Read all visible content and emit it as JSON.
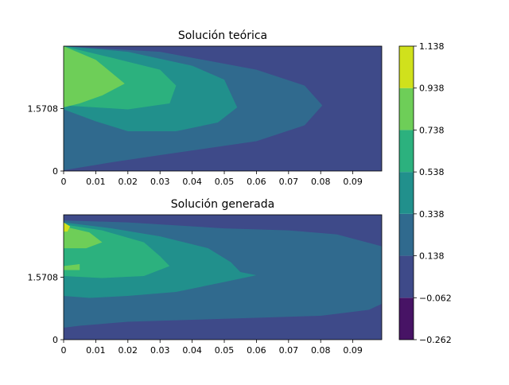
{
  "chart_data": {
    "type": "heatmap",
    "shared_colorbar": {
      "levels": [
        -0.262,
        -0.062,
        0.138,
        0.338,
        0.538,
        0.738,
        0.938,
        1.138
      ],
      "tick_labels": [
        "−0.262",
        "−0.062",
        "0.138",
        "0.338",
        "0.538",
        "0.738",
        "0.938",
        "1.138"
      ],
      "colors": [
        "#471365",
        "#3e4a89",
        "#306a8e",
        "#21908c",
        "#2cb17e",
        "#6ece58",
        "#d0e11c"
      ]
    },
    "panels": [
      {
        "title": "Solución teórica",
        "xlim": [
          0,
          0.099
        ],
        "ylim": [
          0,
          3.14159
        ],
        "x_ticks": [
          0,
          0.01,
          0.02,
          0.03,
          0.04,
          0.05,
          0.06,
          0.07,
          0.08,
          0.09
        ],
        "x_tick_labels": [
          "0",
          "0.01",
          "0.02",
          "0.03",
          "0.04",
          "0.05",
          "0.06",
          "0.07",
          "0.08",
          "0.09"
        ],
        "y_ticks": [
          0,
          1.5708
        ],
        "y_tick_labels": [
          "0",
          "1.5708"
        ],
        "band_boundaries": [
          {
            "level": 0.138,
            "points": [
              [
                0,
                3.14
              ],
              [
                0.03,
                3.0
              ],
              [
                0.06,
                2.55
              ],
              [
                0.075,
                2.15
              ],
              [
                0.0805,
                1.65
              ],
              [
                0.075,
                1.15
              ],
              [
                0.06,
                0.75
              ],
              [
                0.03,
                0.4
              ],
              [
                0.015,
                0.22
              ],
              [
                0,
                0.02
              ]
            ]
          },
          {
            "level": 0.338,
            "points": [
              [
                0,
                3.14
              ],
              [
                0.02,
                3.0
              ],
              [
                0.04,
                2.65
              ],
              [
                0.05,
                2.3
              ],
              [
                0.054,
                1.6
              ],
              [
                0.048,
                1.22
              ],
              [
                0.035,
                1.0
              ],
              [
                0.02,
                1.0
              ],
              [
                0.01,
                1.25
              ],
              [
                0,
                1.55
              ]
            ]
          },
          {
            "level": 0.538,
            "points": [
              [
                0,
                3.14
              ],
              [
                0.015,
                2.85
              ],
              [
                0.03,
                2.55
              ],
              [
                0.035,
                2.15
              ],
              [
                0.033,
                1.7
              ],
              [
                0.02,
                1.55
              ],
              [
                0.01,
                1.6
              ],
              [
                0,
                1.65
              ]
            ]
          },
          {
            "level": 0.738,
            "points": [
              [
                0,
                3.14
              ],
              [
                0.01,
                2.8
              ],
              [
                0.019,
                2.2
              ],
              [
                0.012,
                1.9
              ],
              [
                0.005,
                1.7
              ],
              [
                0,
                1.6
              ]
            ]
          }
        ]
      },
      {
        "title": "Solución generada",
        "xlim": [
          0,
          0.099
        ],
        "ylim": [
          0,
          3.14159
        ],
        "x_ticks": [
          0,
          0.01,
          0.02,
          0.03,
          0.04,
          0.05,
          0.06,
          0.07,
          0.08,
          0.09
        ],
        "x_tick_labels": [
          "0",
          "0.01",
          "0.02",
          "0.03",
          "0.04",
          "0.05",
          "0.06",
          "0.07",
          "0.08",
          "0.09"
        ],
        "y_ticks": [
          0,
          1.5708
        ],
        "y_tick_labels": [
          "0",
          "1.5708"
        ],
        "band_boundaries": [
          {
            "level": 0.138,
            "points": [
              [
                0,
                3.0
              ],
              [
                0.02,
                2.95
              ],
              [
                0.05,
                2.8
              ],
              [
                0.07,
                2.75
              ],
              [
                0.085,
                2.65
              ],
              [
                0.099,
                2.35
              ],
              [
                0.099,
                0.9
              ],
              [
                0.095,
                0.75
              ],
              [
                0.08,
                0.6
              ],
              [
                0.06,
                0.55
              ],
              [
                0.04,
                0.5
              ],
              [
                0.02,
                0.45
              ],
              [
                0.005,
                0.35
              ],
              [
                0,
                0.3
              ]
            ]
          },
          {
            "level": 0.338,
            "points": [
              [
                0,
                2.95
              ],
              [
                0.015,
                2.8
              ],
              [
                0.03,
                2.6
              ],
              [
                0.045,
                2.3
              ],
              [
                0.052,
                1.95
              ],
              [
                0.055,
                1.7
              ],
              [
                0.06,
                1.62
              ],
              [
                0.05,
                1.45
              ],
              [
                0.035,
                1.2
              ],
              [
                0.02,
                1.1
              ],
              [
                0.008,
                1.05
              ],
              [
                0,
                1.1
              ]
            ]
          },
          {
            "level": 0.538,
            "points": [
              [
                0,
                2.9
              ],
              [
                0.012,
                2.75
              ],
              [
                0.025,
                2.45
              ],
              [
                0.03,
                2.1
              ],
              [
                0.033,
                1.85
              ],
              [
                0.025,
                1.6
              ],
              [
                0.012,
                1.55
              ],
              [
                0,
                1.6
              ]
            ]
          },
          {
            "level": 0.738,
            "points": [
              [
                0,
                2.85
              ],
              [
                0.008,
                2.7
              ],
              [
                0.012,
                2.45
              ],
              [
                0.007,
                2.3
              ],
              [
                0,
                2.3
              ]
            ]
          },
          {
            "level": 0.938,
            "points": [
              [
                0,
                2.95
              ],
              [
                0.002,
                2.85
              ],
              [
                0.0012,
                2.72
              ],
              [
                0,
                2.72
              ]
            ]
          }
        ],
        "islands": [
          {
            "level": 0.738,
            "points": [
              [
                0,
                1.85
              ],
              [
                0.005,
                1.9
              ],
              [
                0.005,
                1.75
              ],
              [
                0,
                1.75
              ]
            ]
          }
        ]
      }
    ]
  }
}
